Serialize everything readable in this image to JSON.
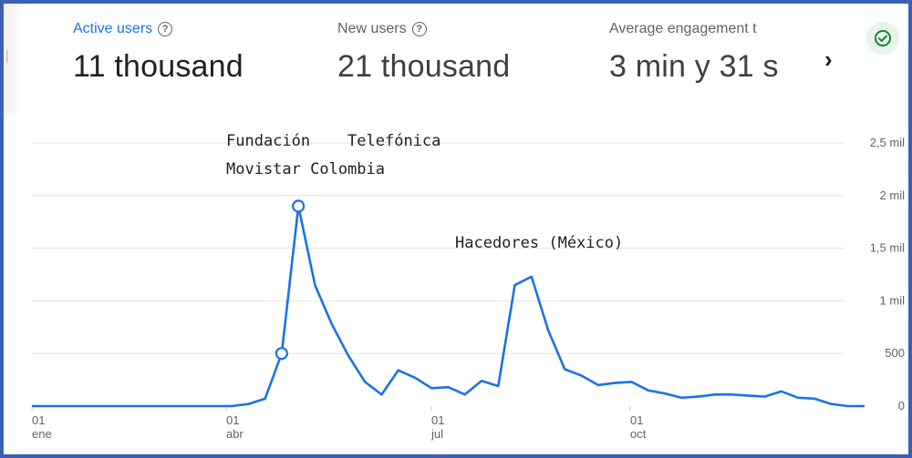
{
  "metrics": {
    "active_users": {
      "label": "Active users",
      "value": "11 thousand"
    },
    "new_users": {
      "label": "New users",
      "value": "21 thousand"
    },
    "avg_engagement": {
      "label": "Average engagement t",
      "value": "3 min y 31 s"
    }
  },
  "help_icon_glyph": "?",
  "next_icon_glyph": "›",
  "status_icon": "check-circle-icon",
  "colors": {
    "line": "#1a73e8",
    "active_label": "#1a73e8",
    "status_green": "#188038",
    "frame": "#3d5fb3"
  },
  "chart_data": {
    "type": "line",
    "title": "",
    "xlabel": "",
    "ylabel": "",
    "x_ticks": [
      {
        "day": "01",
        "month": "ene"
      },
      {
        "day": "01",
        "month": "abr"
      },
      {
        "day": "01",
        "month": "jul"
      },
      {
        "day": "01",
        "month": "oct"
      }
    ],
    "y_ticks": [
      "0",
      "500",
      "1 mil",
      "1,5 mil",
      "2 mil",
      "2,5 mil"
    ],
    "ylim": [
      0,
      2500
    ],
    "grid": true,
    "series": [
      {
        "values": [
          0,
          0,
          0,
          0,
          0,
          0,
          0,
          0,
          0,
          0,
          0,
          0,
          0,
          20,
          70,
          500,
          1900,
          1150,
          780,
          480,
          230,
          110,
          340,
          270,
          170,
          180,
          110,
          240,
          190,
          1150,
          1230,
          720,
          350,
          290,
          200,
          220,
          230,
          150,
          120,
          80,
          90,
          110,
          110,
          100,
          90,
          140,
          80,
          70,
          20,
          0,
          0
        ]
      }
    ],
    "highlight_points": [
      15,
      16
    ],
    "annotations": [
      {
        "lines": [
          "Fundación    Telefónica",
          "Movistar Colombia"
        ]
      },
      {
        "lines": [
          "Hacedores (México)"
        ]
      }
    ]
  }
}
